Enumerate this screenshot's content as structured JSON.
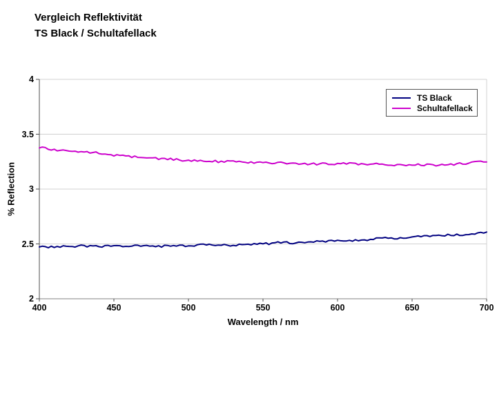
{
  "title": {
    "line1": "Vergleich Reflektivität",
    "line2": "TS Black / Schultafellack"
  },
  "colors": {
    "ts_black_line": "#000080",
    "schultafellack_line": "#CC00CC",
    "gridline": "#D0D0D0",
    "axis": "#4d4d4d",
    "x_axis_line": "#808080",
    "legend_border": "#555555",
    "background": "#ffffff",
    "text": "#000000"
  },
  "legend": {
    "items": [
      {
        "label": "TS Black",
        "color": "#000080"
      },
      {
        "label": "Schultafellack",
        "color": "#CC00CC"
      }
    ]
  },
  "chart_data": {
    "type": "line",
    "title": "Vergleich Reflektivität TS Black / Schultafellack",
    "xlabel": "Wavelength / nm",
    "ylabel": "% Reflection",
    "xlim": [
      400,
      700
    ],
    "ylim": [
      2,
      4
    ],
    "x_ticks": [
      400,
      450,
      500,
      550,
      600,
      650,
      700
    ],
    "y_ticks": [
      2,
      2.5,
      3,
      3.5,
      4
    ],
    "grid": true,
    "legend_position": "top-right",
    "x": [
      400,
      410,
      420,
      430,
      440,
      450,
      460,
      470,
      480,
      490,
      500,
      510,
      520,
      530,
      540,
      550,
      560,
      570,
      580,
      590,
      600,
      610,
      620,
      630,
      640,
      650,
      660,
      670,
      680,
      690,
      700
    ],
    "series": [
      {
        "name": "TS Black",
        "color": "#000080",
        "values": [
          2.48,
          2.47,
          2.48,
          2.48,
          2.48,
          2.48,
          2.48,
          2.48,
          2.48,
          2.48,
          2.48,
          2.49,
          2.49,
          2.49,
          2.5,
          2.5,
          2.51,
          2.51,
          2.52,
          2.52,
          2.53,
          2.53,
          2.54,
          2.55,
          2.55,
          2.56,
          2.57,
          2.58,
          2.58,
          2.59,
          2.6
        ]
      },
      {
        "name": "Schultafellack",
        "color": "#CC00CC",
        "values": [
          3.38,
          3.36,
          3.35,
          3.34,
          3.33,
          3.31,
          3.3,
          3.29,
          3.28,
          3.27,
          3.26,
          3.26,
          3.25,
          3.25,
          3.24,
          3.24,
          3.24,
          3.23,
          3.23,
          3.23,
          3.23,
          3.23,
          3.23,
          3.23,
          3.22,
          3.22,
          3.22,
          3.22,
          3.23,
          3.24,
          3.25
        ]
      }
    ]
  }
}
